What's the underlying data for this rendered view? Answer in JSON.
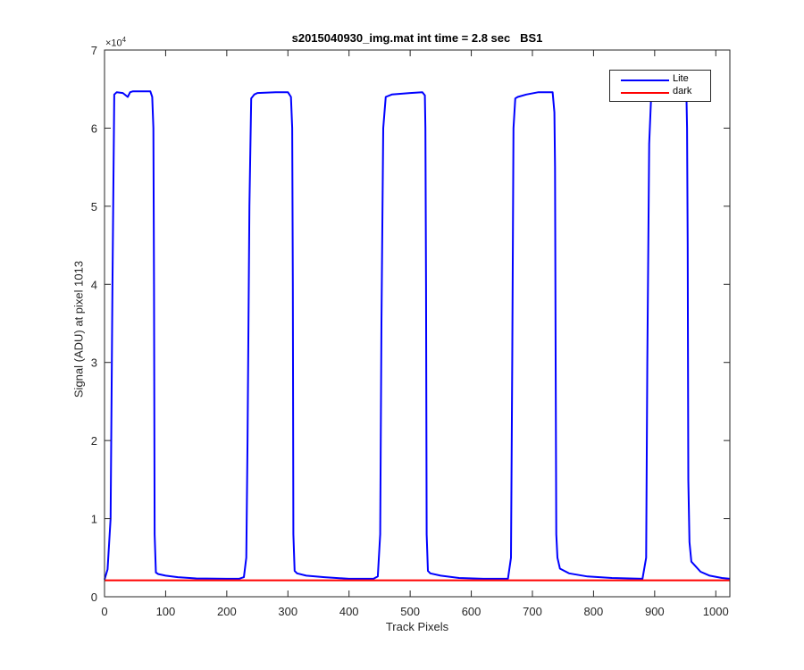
{
  "chart_data": {
    "type": "line",
    "title": "s2015040930_img.mat int time = 2.8 sec   BS1",
    "xlabel": "Track Pixels",
    "ylabel": "Signal (ADU) at pixel 1013",
    "y_exponent_base": "×10",
    "y_exponent_power": "4",
    "xlim": [
      0,
      1023
    ],
    "ylim": [
      0,
      70000
    ],
    "xticks": [
      0,
      100,
      200,
      300,
      400,
      500,
      600,
      700,
      800,
      900,
      1000
    ],
    "yticks": [
      0,
      10000,
      20000,
      30000,
      40000,
      50000,
      60000,
      70000
    ],
    "ytick_labels": [
      "0",
      "1",
      "2",
      "3",
      "4",
      "5",
      "6",
      "7"
    ],
    "grid": false,
    "legend_position": "top-right",
    "series": [
      {
        "name": "Lite",
        "color": "#0000ff",
        "x": [
          0,
          5,
          10,
          13,
          16,
          20,
          30,
          38,
          42,
          46,
          55,
          65,
          75,
          78,
          80,
          81,
          82,
          84,
          88,
          100,
          120,
          150,
          200,
          220,
          228,
          232,
          234,
          237,
          240,
          245,
          250,
          280,
          300,
          305,
          307,
          308,
          309,
          311,
          315,
          330,
          360,
          400,
          440,
          447,
          451,
          453,
          456,
          460,
          470,
          500,
          520,
          524,
          525,
          526,
          527,
          529,
          533,
          550,
          580,
          620,
          660,
          665,
          667,
          669,
          672,
          676,
          690,
          710,
          733,
          736,
          737,
          738,
          739,
          741,
          745,
          760,
          790,
          830,
          880,
          886,
          888,
          891,
          894,
          900,
          930,
          950,
          952,
          953,
          954,
          955,
          957,
          960,
          975,
          990,
          1010,
          1023
        ],
        "y": [
          2200,
          3500,
          10000,
          40000,
          64300,
          64600,
          64500,
          64000,
          64600,
          64700,
          64700,
          64700,
          64700,
          64000,
          60000,
          40000,
          8000,
          3100,
          2900,
          2700,
          2500,
          2350,
          2300,
          2300,
          2500,
          5000,
          20000,
          50000,
          63800,
          64300,
          64500,
          64600,
          64600,
          64000,
          60000,
          40000,
          8000,
          3300,
          3000,
          2700,
          2500,
          2300,
          2300,
          2600,
          8000,
          35000,
          60000,
          64000,
          64300,
          64500,
          64600,
          64200,
          60000,
          40000,
          8000,
          3300,
          3000,
          2700,
          2400,
          2300,
          2300,
          5000,
          30000,
          60000,
          63800,
          64000,
          64300,
          64600,
          64600,
          62000,
          55000,
          30000,
          8000,
          5000,
          3600,
          3000,
          2600,
          2400,
          2300,
          5000,
          30000,
          58000,
          63500,
          64200,
          64700,
          64700,
          64200,
          60000,
          45000,
          15000,
          7000,
          4500,
          3200,
          2700,
          2400,
          2300
        ]
      },
      {
        "name": "dark",
        "color": "#ff0000",
        "x": [
          0,
          1023
        ],
        "y": [
          2100,
          2100
        ]
      }
    ]
  }
}
